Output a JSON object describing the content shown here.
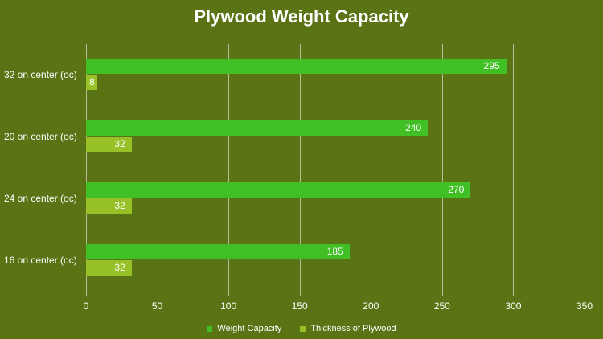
{
  "chart_data": {
    "type": "bar",
    "orientation": "horizontal",
    "title": "Plywood Weight Capacity",
    "categories": [
      "32 on center (oc)",
      "20 on center (oc)",
      "24 on center (oc)",
      "16 on center (oc)"
    ],
    "series": [
      {
        "name": "Weight Capacity",
        "color": "#41c026",
        "values": [
          295,
          240,
          270,
          185
        ]
      },
      {
        "name": "Thickness of Plywood",
        "color": "#97c126",
        "values": [
          8,
          32,
          32,
          32
        ]
      }
    ],
    "xlabel": "",
    "ylabel": "",
    "xlim": [
      0,
      350
    ],
    "xticks": [
      "0",
      "50",
      "100",
      "150",
      "200",
      "250",
      "300",
      "350"
    ],
    "grid": true,
    "legend_position": "bottom",
    "data_labels": true
  },
  "colors": {
    "background": "#5a7314",
    "gridline": "#b5bf9a"
  }
}
